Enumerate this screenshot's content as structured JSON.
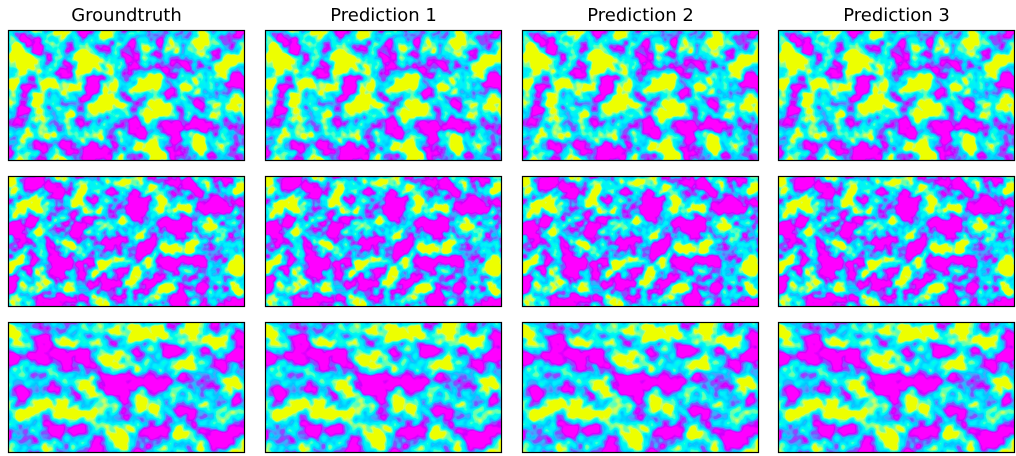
{
  "columns": [
    "Groundtruth",
    "Prediction 1",
    "Prediction 2",
    "Prediction 3"
  ]
}
